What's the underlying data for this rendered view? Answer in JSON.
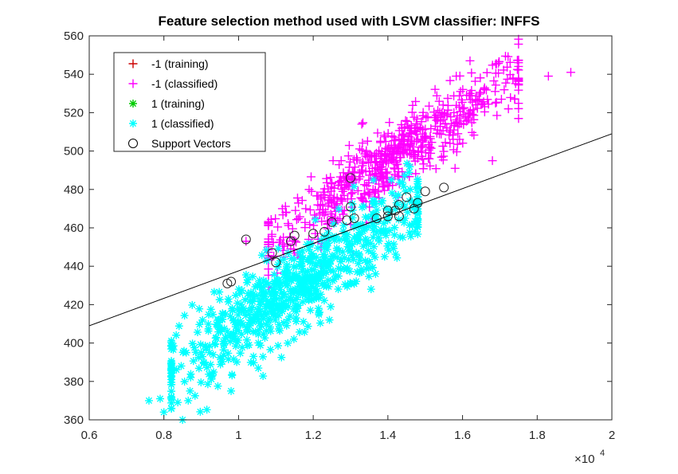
{
  "chart_data": {
    "type": "scatter",
    "title": "Feature selection method used with LSVM classifier: INFFS",
    "xlabel": "",
    "ylabel": "",
    "xlim": [
      6000,
      20000
    ],
    "ylim": [
      360,
      560
    ],
    "x_ticks": [
      6000,
      8000,
      10000,
      12000,
      14000,
      16000,
      18000,
      20000
    ],
    "x_tick_labels": [
      "0.6",
      "0.8",
      "1",
      "1.2",
      "1.4",
      "1.6",
      "1.8",
      "2"
    ],
    "x_exponent_label": "×10",
    "x_exponent_power": "4",
    "y_ticks": [
      360,
      380,
      400,
      420,
      440,
      460,
      480,
      500,
      520,
      540,
      560
    ],
    "y_tick_labels": [
      "360",
      "380",
      "400",
      "420",
      "440",
      "460",
      "480",
      "500",
      "520",
      "540",
      "560"
    ],
    "grid": false,
    "legend_position": "top-left",
    "legend": [
      {
        "label": "-1 (training)",
        "marker": "plus",
        "color": "#cc0000"
      },
      {
        "label": "-1 (classified)",
        "marker": "plus",
        "color": "#ff00ff"
      },
      {
        "label": "1 (training)",
        "marker": "star",
        "color": "#00cc00"
      },
      {
        "label": "1 (classified)",
        "marker": "star",
        "color": "#00ffff"
      },
      {
        "label": "Support Vectors",
        "marker": "circle",
        "color": "#000000"
      }
    ],
    "decision_boundary": {
      "x": [
        6000,
        20000
      ],
      "y": [
        409,
        509
      ],
      "color": "#000000"
    },
    "series": [
      {
        "name": "-1 (classified)",
        "marker": "plus",
        "color": "#ff00ff",
        "cluster": {
          "x_range": [
            10800,
            17500
          ],
          "y_at_x_start": 452,
          "y_at_x_end": 540,
          "spread": 9,
          "count": 650
        },
        "outliers": [
          [
            18300,
            539
          ],
          [
            18900,
            541
          ],
          [
            17400,
            527
          ],
          [
            16200,
            547
          ],
          [
            13300,
            514
          ],
          [
            12200,
            475
          ],
          [
            10200,
            453
          ],
          [
            11200,
            455
          ],
          [
            11800,
            470
          ],
          [
            12500,
            483
          ],
          [
            16800,
            495
          ],
          [
            15800,
            491
          ]
        ]
      },
      {
        "name": "1 (classified)",
        "marker": "star",
        "color": "#00ffff",
        "cluster": {
          "x_range": [
            8200,
            14800
          ],
          "y_at_x_start": 385,
          "y_at_x_end": 472,
          "spread": 11,
          "count": 750
        },
        "outliers": [
          [
            7600,
            370
          ],
          [
            7900,
            371
          ],
          [
            8000,
            364
          ],
          [
            8500,
            360
          ],
          [
            8700,
            375
          ],
          [
            9300,
            383
          ],
          [
            9800,
            375
          ],
          [
            9000,
            395
          ],
          [
            14400,
            455
          ],
          [
            14700,
            462
          ],
          [
            10400,
            393
          ]
        ]
      }
    ],
    "support_vectors": [
      [
        10200,
        454
      ],
      [
        9700,
        431
      ],
      [
        9800,
        432
      ],
      [
        10900,
        447
      ],
      [
        11000,
        442
      ],
      [
        11400,
        453
      ],
      [
        11500,
        456
      ],
      [
        12000,
        457
      ],
      [
        12300,
        458
      ],
      [
        12500,
        463
      ],
      [
        13000,
        471
      ],
      [
        13000,
        486
      ],
      [
        13700,
        465
      ],
      [
        14200,
        469
      ],
      [
        14300,
        472
      ],
      [
        14500,
        476
      ],
      [
        14700,
        470
      ],
      [
        14800,
        473
      ],
      [
        15000,
        479
      ],
      [
        15500,
        481
      ],
      [
        14000,
        466
      ],
      [
        14300,
        466
      ],
      [
        12900,
        464
      ],
      [
        13100,
        465
      ],
      [
        14000,
        469
      ]
    ]
  }
}
